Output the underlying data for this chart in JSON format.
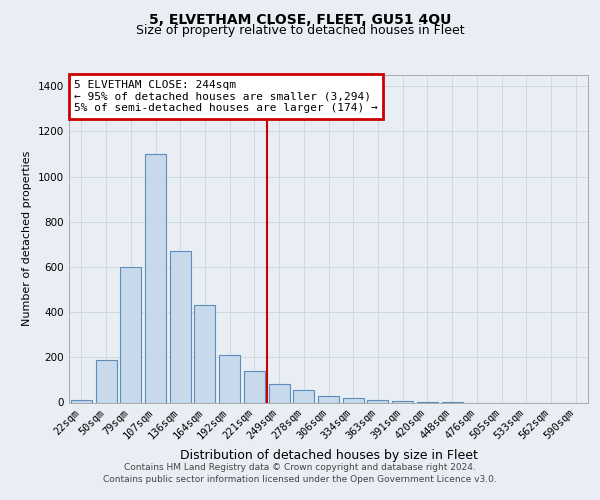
{
  "title": "5, ELVETHAM CLOSE, FLEET, GU51 4QU",
  "subtitle": "Size of property relative to detached houses in Fleet",
  "xlabel": "Distribution of detached houses by size in Fleet",
  "ylabel": "Number of detached properties",
  "categories": [
    "22sqm",
    "50sqm",
    "79sqm",
    "107sqm",
    "136sqm",
    "164sqm",
    "192sqm",
    "221sqm",
    "249sqm",
    "278sqm",
    "306sqm",
    "334sqm",
    "363sqm",
    "391sqm",
    "420sqm",
    "448sqm",
    "476sqm",
    "505sqm",
    "533sqm",
    "562sqm",
    "590sqm"
  ],
  "values": [
    10,
    190,
    600,
    1100,
    670,
    430,
    210,
    140,
    80,
    55,
    30,
    20,
    10,
    5,
    2,
    1,
    0,
    0,
    0,
    0,
    0
  ],
  "bar_color": "#c9d9ec",
  "bar_edge_color": "#5b8db8",
  "vline_x": 7.5,
  "vline_color": "#cc0000",
  "annotation_line1": "5 ELVETHAM CLOSE: 244sqm",
  "annotation_line2": "← 95% of detached houses are smaller (3,294)",
  "annotation_line3": "5% of semi-detached houses are larger (174) →",
  "annotation_box_color": "white",
  "annotation_box_edge_color": "#cc0000",
  "ylim": [
    0,
    1450
  ],
  "yticks": [
    0,
    200,
    400,
    600,
    800,
    1000,
    1200,
    1400
  ],
  "background_color": "#e8eef4",
  "plot_background_color": "#e8eef4",
  "footer_line1": "Contains HM Land Registry data © Crown copyright and database right 2024.",
  "footer_line2": "Contains public sector information licensed under the Open Government Licence v3.0.",
  "title_fontsize": 10,
  "subtitle_fontsize": 9,
  "xlabel_fontsize": 9,
  "ylabel_fontsize": 8,
  "tick_fontsize": 7.5,
  "footer_fontsize": 6.5,
  "annotation_fontsize": 8,
  "grid_color": "#d0d8e0"
}
